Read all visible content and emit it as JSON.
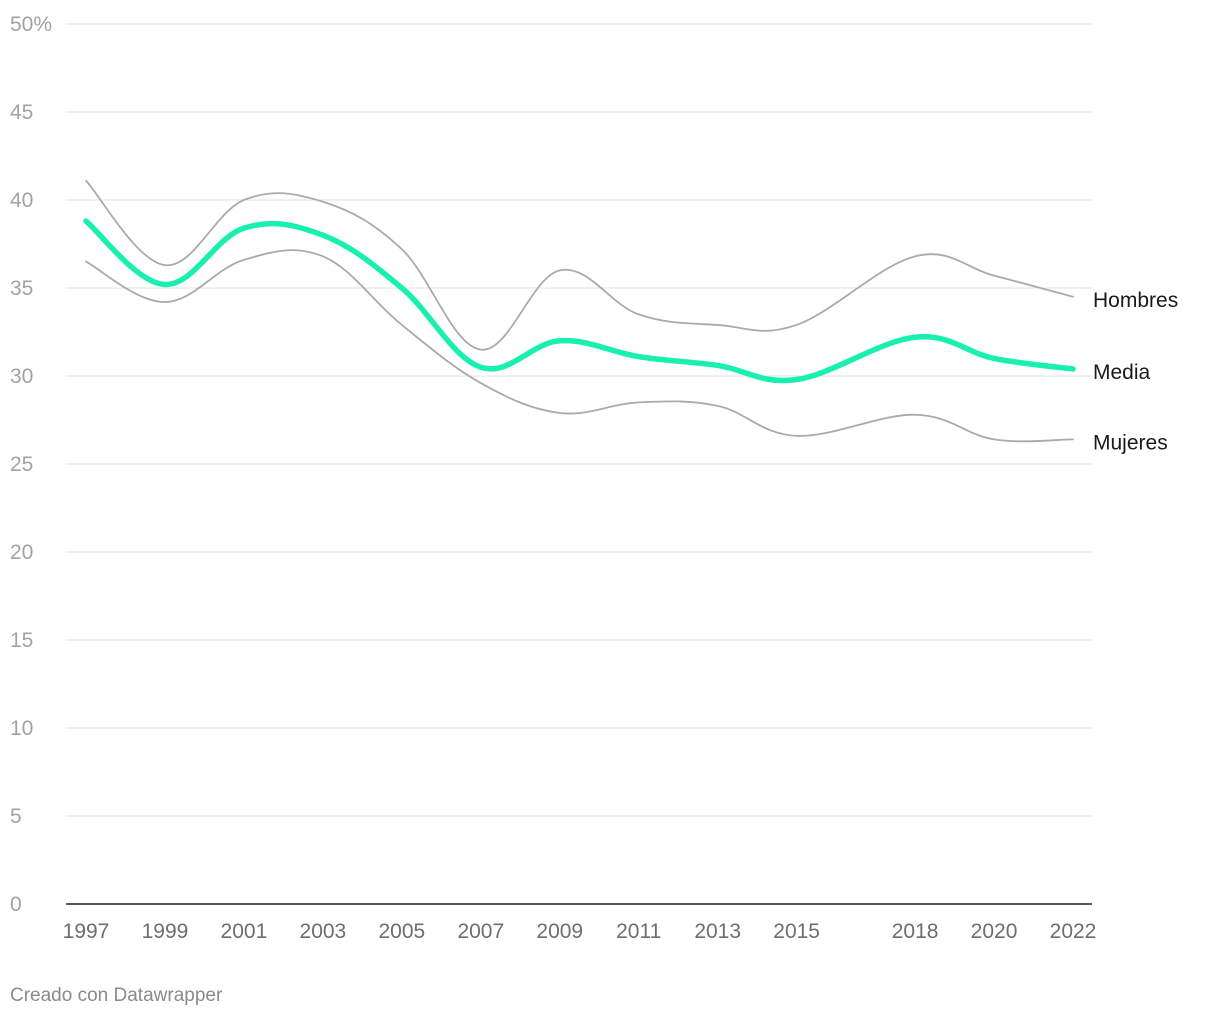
{
  "chart_data": {
    "type": "line",
    "x": [
      1997,
      1999,
      2001,
      2003,
      2005,
      2007,
      2009,
      2011,
      2013,
      2015,
      2018,
      2020,
      2022
    ],
    "series": [
      {
        "name": "Hombres",
        "values": [
          41.1,
          36.3,
          40.0,
          39.9,
          37.2,
          31.5,
          36.0,
          33.5,
          32.9,
          32.9,
          36.8,
          35.7,
          34.5
        ],
        "color": "#aaaaaa"
      },
      {
        "name": "Media",
        "values": [
          38.8,
          35.2,
          38.4,
          38.0,
          35.0,
          30.5,
          32.0,
          31.1,
          30.6,
          29.8,
          32.2,
          31.0,
          30.4
        ],
        "color": "#19f0b0"
      },
      {
        "name": "Mujeres",
        "values": [
          36.5,
          34.2,
          36.6,
          36.8,
          32.9,
          29.6,
          27.9,
          28.5,
          28.3,
          26.6,
          27.8,
          26.4,
          26.4
        ],
        "color": "#aaaaaa"
      }
    ],
    "x_tick_labels": [
      "1997",
      "1999",
      "2001",
      "2003",
      "2005",
      "2007",
      "2009",
      "2011",
      "2013",
      "2015",
      "2018",
      "2020",
      "2022"
    ],
    "y_tick_labels": [
      "50%",
      "45",
      "40",
      "35",
      "30",
      "25",
      "20",
      "15",
      "10",
      "5",
      "0"
    ],
    "ylim": [
      0,
      50
    ],
    "grid": true,
    "legend": "inline labels at line ends"
  },
  "footer": {
    "credit": "Creado con Datawrapper"
  }
}
